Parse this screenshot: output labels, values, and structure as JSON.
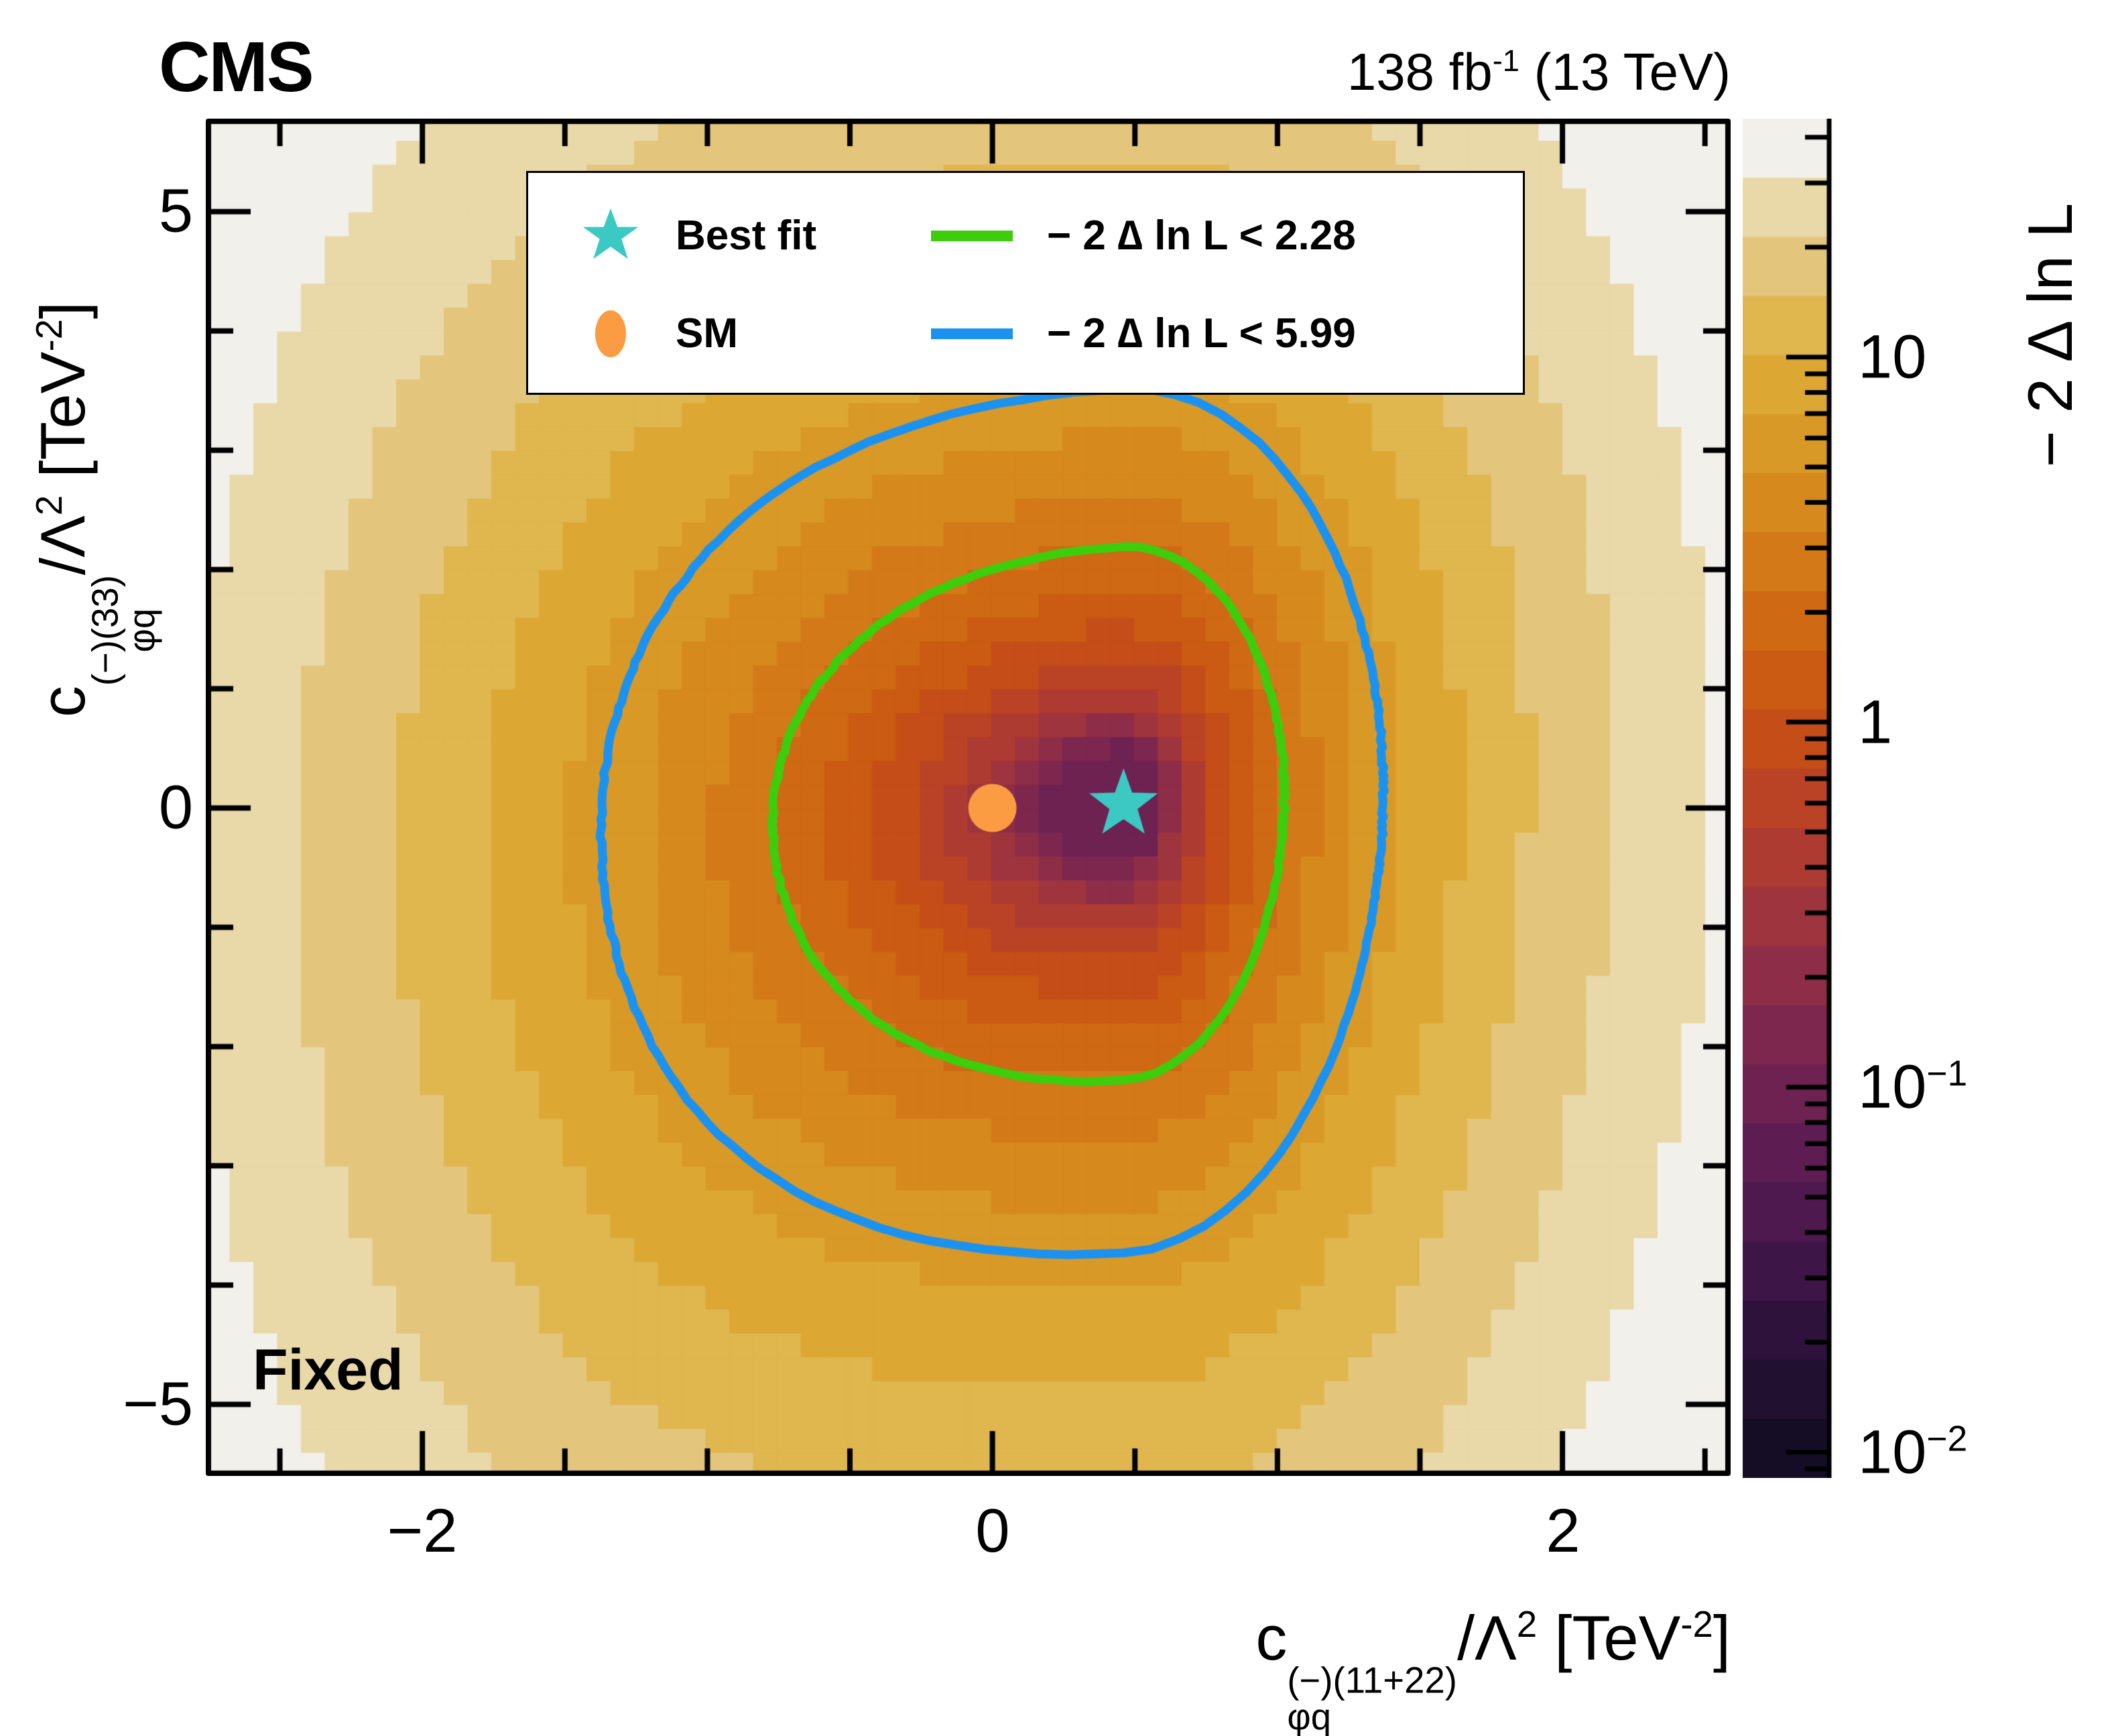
{
  "header": {
    "experiment": "CMS",
    "lumi_prefix": "138 fb",
    "lumi_exp": "-1",
    "lumi_suffix": " (13 TeV)"
  },
  "annotation": "Fixed",
  "legend": {
    "best_fit_label": "Best fit",
    "sm_label": "SM",
    "contour1_label": "− 2 ∆ ln L < 2.28",
    "contour2_label": "− 2 ∆ ln L < 5.99"
  },
  "axes": {
    "x_title": {
      "base": "c",
      "sub": "φq",
      "sup": "(−)(11+22)",
      "mid": "/Λ",
      "exp": "2",
      "unit_pre": " [TeV",
      "unit_exp": "-2",
      "unit_post": "]"
    },
    "y_title": {
      "base": "c",
      "sub": "φq",
      "sup": "(−)(33)",
      "mid": "/Λ",
      "exp": "2",
      "unit_pre": " [TeV",
      "unit_exp": "-2",
      "unit_post": "]"
    },
    "z_title": "− 2 ∆ ln L",
    "x_tick_labels": [
      "−2",
      "0",
      "2"
    ],
    "y_tick_labels": [
      "5",
      "0",
      "−5"
    ],
    "z_tick_labels": [
      {
        "base": "10",
        "exp": ""
      },
      {
        "base": "1",
        "exp": ""
      },
      {
        "base": "10",
        "exp": "−1"
      },
      {
        "base": "10",
        "exp": "−2"
      }
    ]
  },
  "chart_data": {
    "type": "heatmap",
    "title": "CMS 138 fb-1 (13 TeV), 2D likelihood scan, Fixed",
    "xlabel": "cphiq(-)(11+22)/Lambda^2 [TeV^-2]",
    "ylabel": "cphiq(-)(33)/Lambda^2 [TeV^-2]",
    "zlabel": "-2 Delta ln L",
    "x_range": [
      -2.76,
      2.59
    ],
    "y_range": [
      -5.6,
      5.78
    ],
    "x_major_ticks": [
      -2,
      0,
      2
    ],
    "x_minor_step": 0.5,
    "y_major_ticks": [
      -5,
      0,
      5
    ],
    "y_minor_step": 1,
    "z_scale": "log",
    "z_min": 0.0085,
    "z_max": 45,
    "z_major_ticks": [
      10,
      1,
      0.1,
      0.01
    ],
    "best_fit_point": {
      "x": 0.46,
      "y": 0.03
    },
    "sm_point": {
      "x": 0.0,
      "y": 0.0
    },
    "contours": [
      {
        "level": 2.28,
        "color": "#3ecd0c",
        "label": "− 2 ∆ ln L < 2.28"
      },
      {
        "level": 5.99,
        "color": "#1b92f0",
        "label": "− 2 ∆ ln L < 5.99"
      }
    ],
    "marker_colors": {
      "best_fit": "#3cc9c4",
      "sm": "#fb9b42"
    },
    "cell_size": {
      "dx": 0.0835,
      "dy": 0.2
    },
    "palette_dark_to_light": [
      "#150c25",
      "#211030",
      "#2e123c",
      "#3d1546",
      "#4d194e",
      "#5d1d52",
      "#6d2252",
      "#7d274e",
      "#8e2d47",
      "#9e343d",
      "#ae3b31",
      "#bb4325",
      "#c54d18",
      "#cb5a12",
      "#cf6913",
      "#d37917",
      "#d6891d",
      "#d99926",
      "#dca833",
      "#dfb74e",
      "#e3c67c",
      "#e9d8a8",
      "#f2f0ea"
    ],
    "surface_model": {
      "x0": 0.46,
      "y0": 0.05,
      "ax_pos": 7.3,
      "ax_neg": 1.3,
      "ax_neg_quartic": 0.15,
      "ay_pos": 0.5,
      "ay_neg": 0.42,
      "cross": -0.12,
      "min_clamp": 0.09
    }
  }
}
